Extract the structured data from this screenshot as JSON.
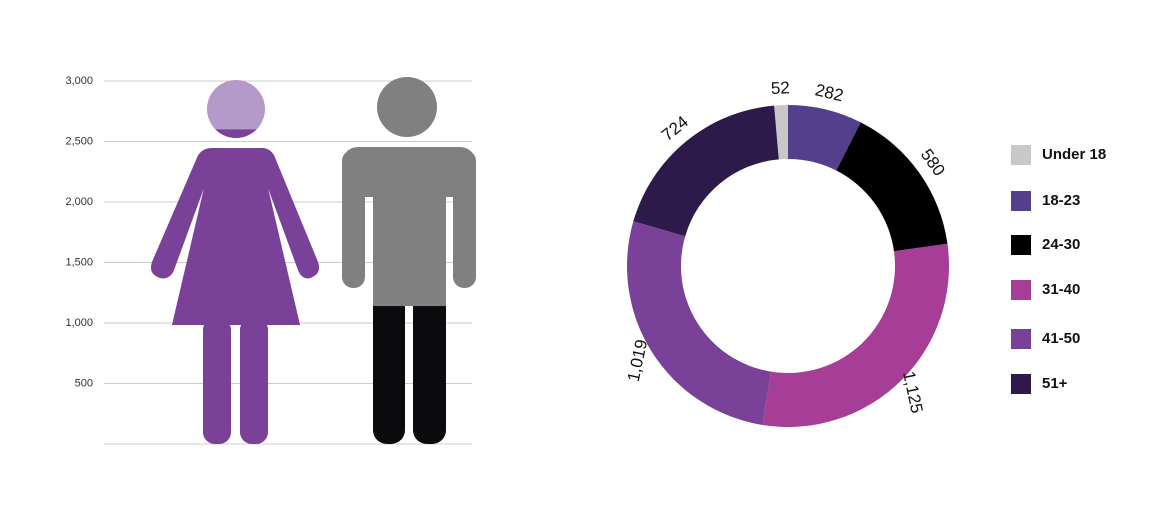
{
  "chart_data": [
    {
      "type": "pictogram",
      "categories": [
        null,
        null
      ],
      "values": [
        2600,
        1140
      ],
      "colors": [
        "#7a4199",
        "#0b0b0d"
      ],
      "empty_colors": [
        "#b49ac9",
        "#808080"
      ],
      "ylim": [
        0,
        3000
      ],
      "yticks": [
        500,
        {
          "value": 1000,
          "label": "1,000"
        },
        {
          "value": 1500,
          "label": "1,500"
        },
        {
          "value": 2000,
          "label": "2,000"
        },
        {
          "value": 2500,
          "label": "2,500"
        },
        {
          "value": 3000,
          "label": "3,000"
        }
      ],
      "grid": true
    },
    {
      "type": "donut",
      "categories": [
        "Under 18",
        "18-23",
        "24-30",
        "31-40",
        "41-50",
        "51+"
      ],
      "values": [
        52,
        282,
        580,
        1125,
        1019,
        724
      ],
      "value_labels": [
        "52",
        "282",
        "580",
        "1,125",
        "1,019",
        "724"
      ],
      "colors": [
        "#c8c8c8",
        "#533f8b",
        "#000000",
        "#a63d96",
        "#7a4199",
        "#2e1a4a"
      ],
      "legend": "right"
    }
  ]
}
